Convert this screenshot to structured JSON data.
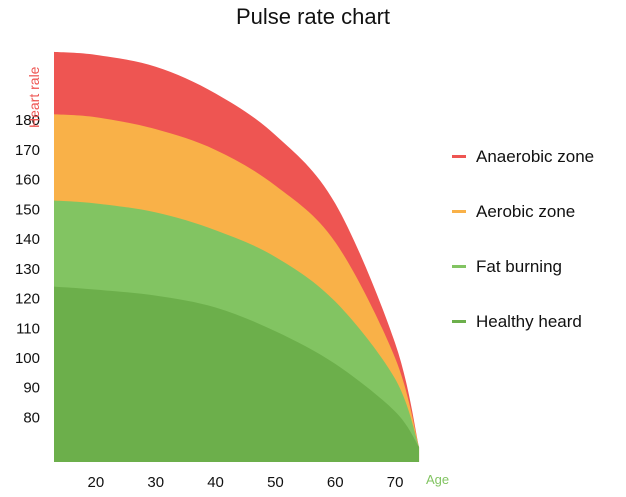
{
  "chart_data": {
    "type": "area",
    "title": "Pulse rate chart",
    "xlabel": "Age",
    "ylabel": "Heart rale",
    "x_ticks": [
      20,
      30,
      40,
      50,
      60,
      70
    ],
    "y_ticks": [
      80,
      90,
      100,
      110,
      120,
      130,
      140,
      150,
      160,
      170,
      180
    ],
    "xlim": [
      13,
      76
    ],
    "ylim": [
      65,
      207
    ],
    "legend_position": "right",
    "series": [
      {
        "name": "Anaerobic zone",
        "color": "#ee5552",
        "x": [
          13,
          20,
          30,
          40,
          50,
          60,
          70,
          74
        ],
        "values": [
          203,
          202,
          198,
          189,
          175,
          152,
          105,
          70
        ]
      },
      {
        "name": "Aerobic zone",
        "color": "#f9b148",
        "x": [
          13,
          20,
          30,
          40,
          50,
          60,
          70,
          74
        ],
        "values": [
          182,
          181,
          177,
          170,
          158,
          139,
          100,
          70
        ]
      },
      {
        "name": "Fat burning",
        "color": "#82c462",
        "x": [
          13,
          20,
          30,
          40,
          50,
          60,
          70,
          74
        ],
        "values": [
          153,
          152,
          149,
          143,
          134,
          119,
          93,
          70
        ]
      },
      {
        "name": "Healthy heard",
        "color": "#6caf4b",
        "x": [
          13,
          20,
          30,
          40,
          50,
          60,
          70,
          74
        ],
        "values": [
          124,
          123,
          121,
          117,
          109,
          98,
          82,
          70
        ]
      }
    ]
  }
}
